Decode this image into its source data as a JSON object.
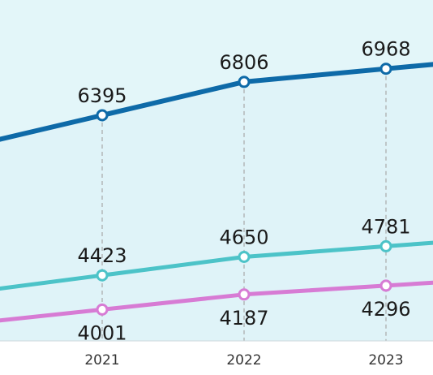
{
  "chart_data": {
    "type": "line",
    "categories": [
      "2021",
      "2022",
      "2023"
    ],
    "series": [
      {
        "values": [
          6395,
          6806,
          6968
        ],
        "color": "#0e6aa8"
      },
      {
        "values": [
          4423,
          4650,
          4781
        ],
        "color": "#4cc3c8"
      },
      {
        "values": [
          4001,
          4187,
          4296
        ],
        "color": "#d77bd4"
      }
    ],
    "label_position": [
      "above",
      "above",
      "below"
    ],
    "grid": false,
    "vertical_dashed_guides": true,
    "background_color": "#e3f6f9"
  }
}
